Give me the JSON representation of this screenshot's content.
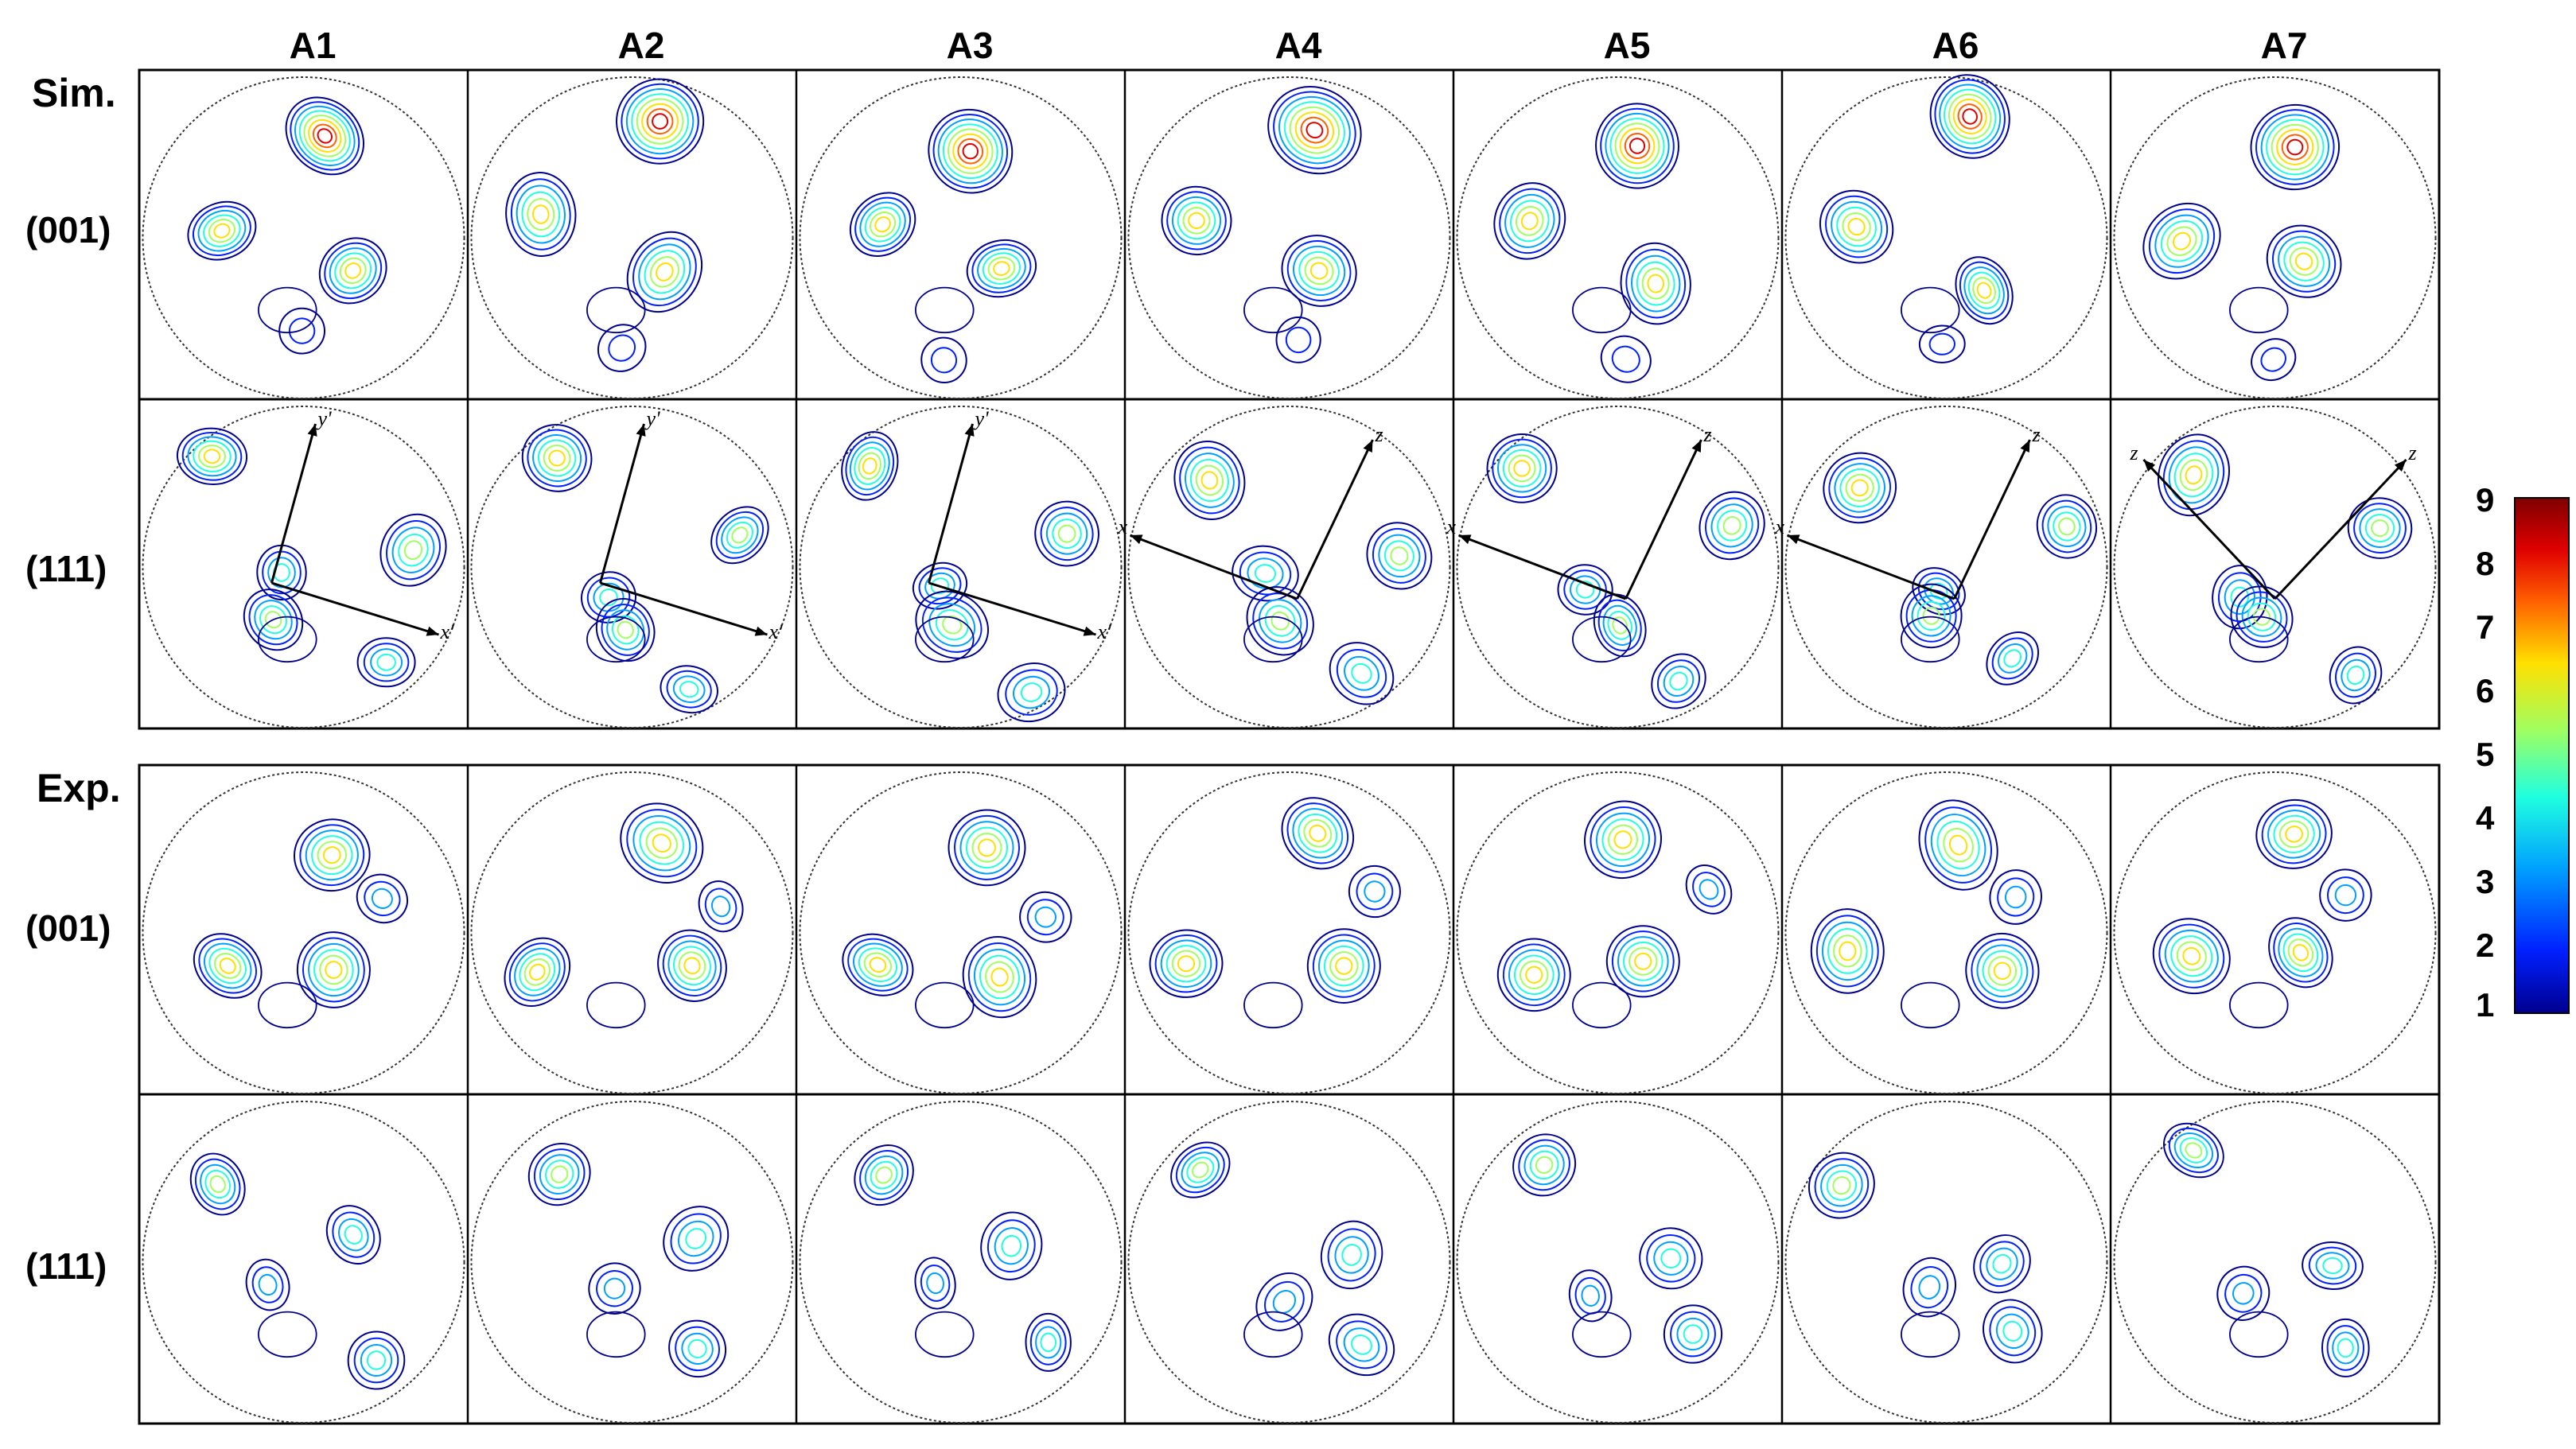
{
  "columns": [
    "A1",
    "A2",
    "A3",
    "A4",
    "A5",
    "A6",
    "A7"
  ],
  "sections": [
    {
      "label": "Sim.",
      "rows": [
        "(001)",
        "(111)"
      ]
    },
    {
      "label": "Exp.",
      "rows": [
        "(001)",
        "(111)"
      ]
    }
  ],
  "axis_labels": {
    "a": "y'",
    "b": "x'",
    "c": "z",
    "d": "x"
  },
  "colorbar": {
    "ticks": [
      "9",
      "8",
      "7",
      "6",
      "5",
      "4",
      "3",
      "2",
      "1"
    ],
    "colors": [
      "#00008f",
      "#0020ff",
      "#00a0ff",
      "#20ffdf",
      "#a0ff60",
      "#ffe000",
      "#ff6000",
      "#e00000",
      "#800000"
    ]
  }
}
